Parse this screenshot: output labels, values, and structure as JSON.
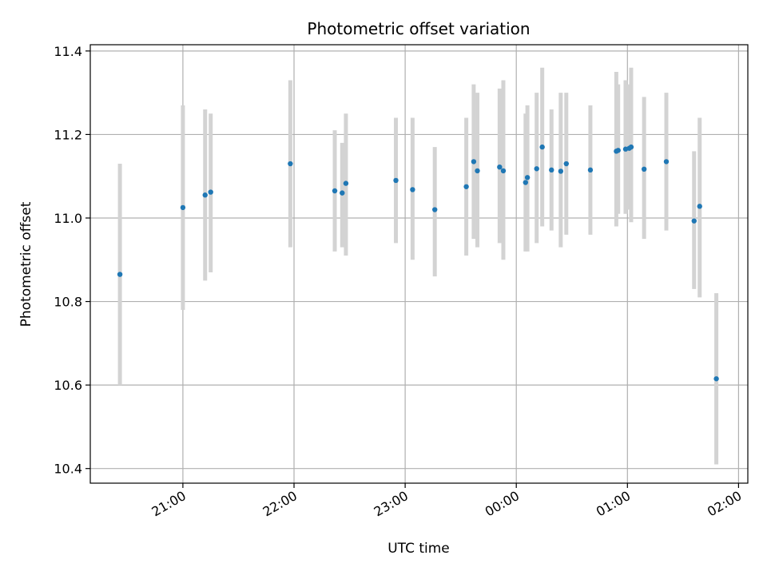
{
  "chart_data": {
    "type": "scatter",
    "title": "Photometric offset variation",
    "xlabel": "UTC time",
    "ylabel": "Photometric offset",
    "ylim": [
      10.365,
      11.415
    ],
    "xlim": [
      "20:10",
      "02:05"
    ],
    "grid": true,
    "x_ticks": [
      "21:00",
      "22:00",
      "23:00",
      "00:00",
      "01:00",
      "02:00"
    ],
    "y_ticks": [
      "10.4",
      "10.6",
      "10.8",
      "11.0",
      "11.2",
      "11.4"
    ],
    "marker_color": "#1f77b4",
    "errorbar_color": "#d3d3d3",
    "points": [
      {
        "t": "20:26",
        "y": 10.865,
        "lo": 10.6,
        "hi": 11.13
      },
      {
        "t": "21:00",
        "y": 11.025,
        "lo": 10.78,
        "hi": 11.27
      },
      {
        "t": "21:12",
        "y": 11.055,
        "lo": 10.85,
        "hi": 11.26
      },
      {
        "t": "21:15",
        "y": 11.062,
        "lo": 10.87,
        "hi": 11.25
      },
      {
        "t": "21:58",
        "y": 11.13,
        "lo": 10.93,
        "hi": 11.33
      },
      {
        "t": "22:22",
        "y": 11.065,
        "lo": 10.92,
        "hi": 11.21
      },
      {
        "t": "22:26",
        "y": 11.06,
        "lo": 10.93,
        "hi": 11.18
      },
      {
        "t": "22:28",
        "y": 11.083,
        "lo": 10.91,
        "hi": 11.25
      },
      {
        "t": "22:55",
        "y": 11.09,
        "lo": 10.94,
        "hi": 11.24
      },
      {
        "t": "23:04",
        "y": 11.068,
        "lo": 10.9,
        "hi": 11.24
      },
      {
        "t": "23:16",
        "y": 11.02,
        "lo": 10.86,
        "hi": 11.17
      },
      {
        "t": "23:33",
        "y": 11.075,
        "lo": 10.91,
        "hi": 11.24
      },
      {
        "t": "23:37",
        "y": 11.135,
        "lo": 10.95,
        "hi": 11.32
      },
      {
        "t": "23:39",
        "y": 11.113,
        "lo": 10.93,
        "hi": 11.3
      },
      {
        "t": "23:51",
        "y": 11.122,
        "lo": 10.94,
        "hi": 11.31
      },
      {
        "t": "23:53",
        "y": 11.113,
        "lo": 10.9,
        "hi": 11.33
      },
      {
        "t": "00:05",
        "y": 11.085,
        "lo": 10.92,
        "hi": 11.25
      },
      {
        "t": "00:06",
        "y": 11.097,
        "lo": 10.92,
        "hi": 11.27
      },
      {
        "t": "00:11",
        "y": 11.118,
        "lo": 10.94,
        "hi": 11.3
      },
      {
        "t": "00:14",
        "y": 11.17,
        "lo": 10.98,
        "hi": 11.36
      },
      {
        "t": "00:19",
        "y": 11.115,
        "lo": 10.97,
        "hi": 11.26
      },
      {
        "t": "00:24",
        "y": 11.112,
        "lo": 10.93,
        "hi": 11.3
      },
      {
        "t": "00:27",
        "y": 11.13,
        "lo": 10.96,
        "hi": 11.3
      },
      {
        "t": "00:40",
        "y": 11.115,
        "lo": 10.96,
        "hi": 11.27
      },
      {
        "t": "00:54",
        "y": 11.16,
        "lo": 10.98,
        "hi": 11.35
      },
      {
        "t": "00:55",
        "y": 11.162,
        "lo": 11.01,
        "hi": 11.32
      },
      {
        "t": "00:59",
        "y": 11.165,
        "lo": 11.01,
        "hi": 11.33
      },
      {
        "t": "01:01",
        "y": 11.167,
        "lo": 11.02,
        "hi": 11.32
      },
      {
        "t": "01:02",
        "y": 11.17,
        "lo": 10.99,
        "hi": 11.36
      },
      {
        "t": "01:09",
        "y": 11.117,
        "lo": 10.95,
        "hi": 11.29
      },
      {
        "t": "01:21",
        "y": 11.135,
        "lo": 10.97,
        "hi": 11.3
      },
      {
        "t": "01:36",
        "y": 10.993,
        "lo": 10.83,
        "hi": 11.16
      },
      {
        "t": "01:39",
        "y": 11.028,
        "lo": 10.81,
        "hi": 11.24
      },
      {
        "t": "01:48",
        "y": 10.615,
        "lo": 10.41,
        "hi": 10.82
      }
    ]
  }
}
